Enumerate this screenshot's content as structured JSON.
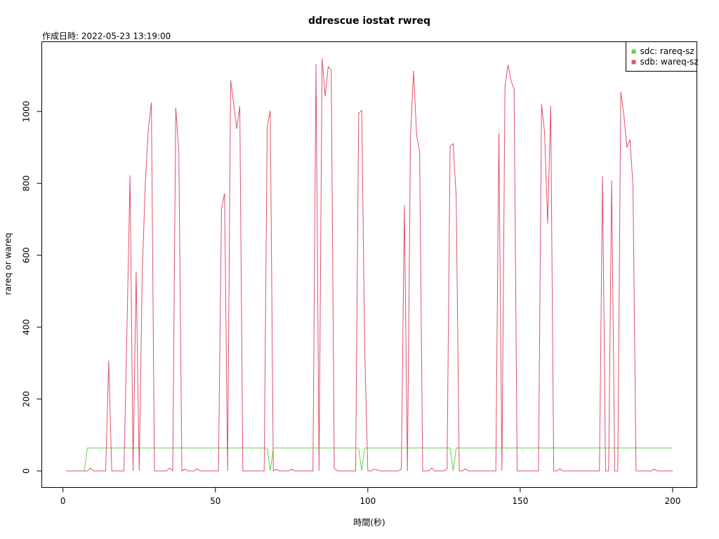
{
  "chart_data": {
    "type": "line",
    "title": "ddrescue iostat rwreq",
    "subtitle": "作成日時: 2022-05-23 13:19:00",
    "x_label": "時間(秒)",
    "y_label": "rareq or wareq",
    "xlim": [
      -6.96,
      207.96
    ],
    "ylim": [
      -45.9,
      1193.9
    ],
    "xticks": [
      0,
      50,
      100,
      150,
      200
    ],
    "yticks": [
      0,
      200,
      400,
      600,
      800,
      1000
    ],
    "legend": "top-right",
    "x": [
      1,
      2,
      3,
      4,
      5,
      6,
      7,
      8,
      9,
      10,
      11,
      12,
      13,
      14,
      15,
      16,
      17,
      18,
      19,
      20,
      21,
      22,
      23,
      24,
      25,
      26,
      27,
      28,
      29,
      30,
      31,
      32,
      33,
      34,
      35,
      36,
      37,
      38,
      39,
      40,
      41,
      42,
      43,
      44,
      45,
      46,
      47,
      48,
      49,
      50,
      51,
      52,
      53,
      54,
      55,
      56,
      57,
      58,
      59,
      60,
      61,
      62,
      63,
      64,
      65,
      66,
      67,
      68,
      69,
      70,
      71,
      72,
      73,
      74,
      75,
      76,
      77,
      78,
      79,
      80,
      81,
      82,
      83,
      84,
      85,
      86,
      87,
      88,
      89,
      90,
      91,
      92,
      93,
      94,
      95,
      96,
      97,
      98,
      99,
      100,
      101,
      102,
      103,
      104,
      105,
      106,
      107,
      108,
      109,
      110,
      111,
      112,
      113,
      114,
      115,
      116,
      117,
      118,
      119,
      120,
      121,
      122,
      123,
      124,
      125,
      126,
      127,
      128,
      129,
      130,
      131,
      132,
      133,
      134,
      135,
      136,
      137,
      138,
      139,
      140,
      141,
      142,
      143,
      144,
      145,
      146,
      147,
      148,
      149,
      150,
      151,
      152,
      153,
      154,
      155,
      156,
      157,
      158,
      159,
      160,
      161,
      162,
      163,
      164,
      165,
      166,
      167,
      168,
      169,
      170,
      171,
      172,
      173,
      174,
      175,
      176,
      177,
      178,
      179,
      180,
      181,
      182,
      183,
      184,
      185,
      186,
      187,
      188,
      189,
      190,
      191,
      192,
      193,
      194,
      195,
      196,
      197,
      198,
      199,
      200
    ],
    "series": [
      {
        "name": "sdc: rareq-sz",
        "color": "#61d04f",
        "values": [
          0,
          0,
          0,
          0,
          0,
          0,
          0,
          64,
          64,
          64,
          64,
          64,
          64,
          64,
          64,
          64,
          64,
          64,
          64,
          64,
          64,
          64,
          64,
          64,
          64,
          64,
          64,
          64,
          64,
          64,
          64,
          64,
          64,
          64,
          64,
          64,
          64,
          64,
          64,
          64,
          64,
          64,
          64,
          64,
          64,
          64,
          64,
          64,
          64,
          64,
          64,
          64,
          64,
          64,
          64,
          64,
          64,
          64,
          64,
          64,
          64,
          64,
          64,
          64,
          64,
          64,
          64,
          0,
          64,
          64,
          64,
          64,
          64,
          64,
          64,
          64,
          64,
          64,
          64,
          64,
          64,
          64,
          64,
          64,
          64,
          64,
          64,
          64,
          64,
          64,
          64,
          64,
          64,
          64,
          64,
          64,
          64,
          0,
          64,
          64,
          64,
          64,
          64,
          64,
          64,
          64,
          64,
          64,
          64,
          64,
          64,
          64,
          64,
          64,
          64,
          64,
          64,
          64,
          64,
          64,
          64,
          64,
          64,
          64,
          64,
          64,
          64,
          0,
          64,
          64,
          64,
          64,
          64,
          64,
          64,
          64,
          64,
          64,
          64,
          64,
          64,
          64,
          64,
          64,
          64,
          64,
          64,
          64,
          64,
          64,
          64,
          64,
          64,
          64,
          64,
          64,
          64,
          64,
          64,
          64,
          64,
          64,
          64,
          64,
          64,
          64,
          64,
          64,
          64,
          64,
          64,
          64,
          64,
          64,
          64,
          64,
          64,
          64,
          64,
          64,
          64,
          64,
          64,
          64,
          64,
          64,
          64,
          64,
          64,
          64,
          64,
          64,
          64,
          64,
          64,
          64,
          64,
          64,
          64,
          64
        ]
      },
      {
        "name": "sdb: wareq-sz",
        "color": "#df536b",
        "values": [
          0,
          0,
          0,
          0,
          0,
          0,
          0,
          0,
          8,
          0,
          0,
          0,
          0,
          0,
          307,
          0,
          0,
          0,
          0,
          0,
          400,
          822,
          0,
          555,
          0,
          550,
          800,
          950,
          1025,
          0,
          0,
          0,
          0,
          0,
          8,
          0,
          1010,
          890,
          0,
          5,
          0,
          0,
          0,
          6,
          0,
          0,
          0,
          0,
          0,
          0,
          0,
          730,
          772,
          0,
          1087,
          1020,
          952,
          1015,
          0,
          0,
          0,
          0,
          0,
          0,
          0,
          0,
          960,
          1002,
          0,
          5,
          0,
          0,
          0,
          0,
          5,
          0,
          0,
          0,
          0,
          0,
          0,
          0,
          1133,
          0,
          1148,
          1042,
          1125,
          1115,
          8,
          0,
          0,
          0,
          0,
          0,
          0,
          0,
          995,
          1003,
          330,
          0,
          0,
          5,
          3,
          0,
          0,
          0,
          0,
          0,
          0,
          0,
          5,
          740,
          0,
          930,
          1113,
          935,
          888,
          0,
          0,
          0,
          8,
          0,
          0,
          0,
          0,
          5,
          903,
          910,
          763,
          0,
          0,
          6,
          0,
          0,
          0,
          0,
          0,
          0,
          0,
          0,
          0,
          0,
          940,
          0,
          1070,
          1130,
          1085,
          1062,
          0,
          0,
          0,
          0,
          0,
          0,
          0,
          0,
          1020,
          940,
          688,
          1015,
          0,
          0,
          6,
          0,
          0,
          0,
          0,
          0,
          0,
          0,
          0,
          0,
          0,
          0,
          0,
          0,
          820,
          0,
          0,
          808,
          0,
          0,
          1055,
          990,
          900,
          922,
          793,
          0,
          0,
          0,
          0,
          0,
          0,
          5,
          0,
          0,
          0,
          0,
          0,
          0
        ]
      }
    ]
  }
}
